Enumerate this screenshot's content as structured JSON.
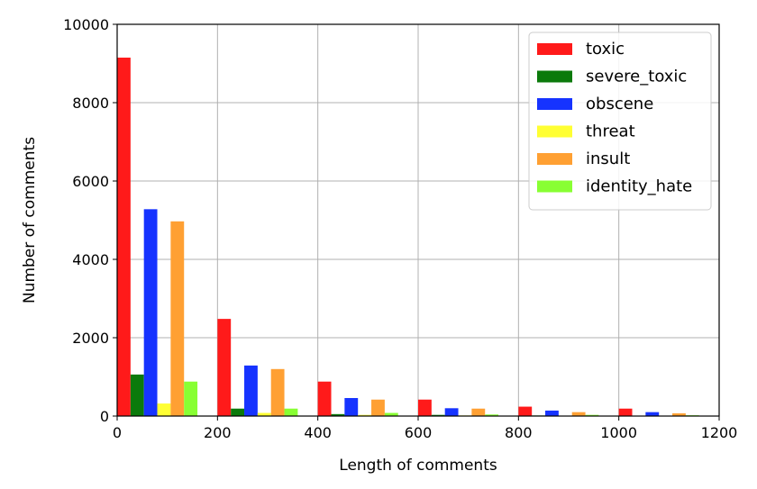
{
  "chart_data": {
    "type": "bar",
    "title": "",
    "xlabel": "Length of comments",
    "ylabel": "Number of comments",
    "xlim": [
      0,
      1200
    ],
    "ylim": [
      0,
      10000
    ],
    "xticks": [
      "0",
      "200",
      "400",
      "600",
      "800",
      "1000",
      "1200"
    ],
    "yticks": [
      "0",
      "2000",
      "4000",
      "6000",
      "8000",
      "10000"
    ],
    "grid": true,
    "legend_position": "top-right",
    "bins": [
      {
        "start": 0,
        "end": 200
      },
      {
        "start": 200,
        "end": 400
      },
      {
        "start": 400,
        "end": 600
      },
      {
        "start": 600,
        "end": 800
      },
      {
        "start": 800,
        "end": 1000
      },
      {
        "start": 1000,
        "end": 1200
      }
    ],
    "series": [
      {
        "name": "toxic",
        "color": "#ff1a1a",
        "values": [
          9150,
          2480,
          880,
          420,
          240,
          190
        ]
      },
      {
        "name": "severe_toxic",
        "color": "#0b7a0b",
        "values": [
          1060,
          190,
          50,
          30,
          15,
          10
        ]
      },
      {
        "name": "obscene",
        "color": "#1633ff",
        "values": [
          5280,
          1290,
          460,
          200,
          140,
          100
        ]
      },
      {
        "name": "threat",
        "color": "#ffff33",
        "values": [
          320,
          80,
          30,
          15,
          8,
          5
        ]
      },
      {
        "name": "insult",
        "color": "#ffa033",
        "values": [
          4970,
          1200,
          420,
          190,
          100,
          70
        ]
      },
      {
        "name": "identity_hate",
        "color": "#88ff33",
        "values": [
          880,
          190,
          80,
          40,
          30,
          20
        ]
      }
    ]
  }
}
